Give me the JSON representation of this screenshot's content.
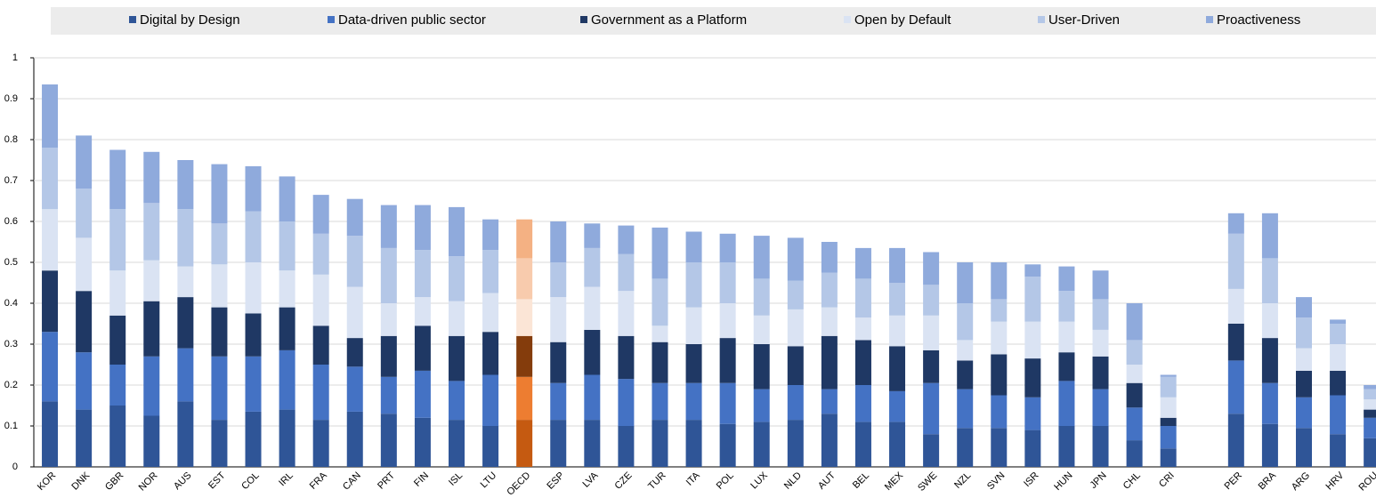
{
  "chart_data": {
    "type": "stacked_bar",
    "categories": [
      "KOR",
      "DNK",
      "GBR",
      "NOR",
      "AUS",
      "EST",
      "COL",
      "IRL",
      "FRA",
      "CAN",
      "PRT",
      "FIN",
      "ISL",
      "LTU",
      "OECD",
      "ESP",
      "LVA",
      "CZE",
      "TUR",
      "ITA",
      "POL",
      "LUX",
      "NLD",
      "AUT",
      "BEL",
      "MEX",
      "SWE",
      "NZL",
      "SVN",
      "ISR",
      "HUN",
      "JPN",
      "CHL",
      "CRI",
      null,
      "PER",
      "BRA",
      "ARG",
      "HRV",
      "ROU"
    ],
    "highlight": "OECD",
    "series": [
      {
        "name": "Digital by Design",
        "color": "#2f5597",
        "highlight_color": "#c55a11",
        "values": [
          0.16,
          0.14,
          0.15,
          0.125,
          0.16,
          0.115,
          0.135,
          0.14,
          0.115,
          0.135,
          0.13,
          0.12,
          0.115,
          0.1,
          0.115,
          0.115,
          0.115,
          0.1,
          0.115,
          0.115,
          0.105,
          0.11,
          0.115,
          0.13,
          0.11,
          0.11,
          0.08,
          0.095,
          0.095,
          0.09,
          0.1,
          0.1,
          0.065,
          0.045,
          null,
          0.13,
          0.105,
          0.095,
          0.08,
          0.07
        ]
      },
      {
        "name": "Data-driven public sector",
        "color": "#4472c4",
        "highlight_color": "#ed7d31",
        "values": [
          0.17,
          0.14,
          0.1,
          0.145,
          0.13,
          0.155,
          0.135,
          0.145,
          0.135,
          0.11,
          0.09,
          0.115,
          0.095,
          0.125,
          0.105,
          0.09,
          0.11,
          0.115,
          0.09,
          0.09,
          0.1,
          0.08,
          0.085,
          0.06,
          0.09,
          0.075,
          0.125,
          0.095,
          0.08,
          0.08,
          0.11,
          0.09,
          0.08,
          0.055,
          null,
          0.13,
          0.1,
          0.075,
          0.095,
          0.05
        ]
      },
      {
        "name": "Government as a Platform",
        "color": "#1f3864",
        "highlight_color": "#843c0c",
        "values": [
          0.15,
          0.15,
          0.12,
          0.135,
          0.125,
          0.12,
          0.105,
          0.105,
          0.095,
          0.07,
          0.1,
          0.11,
          0.11,
          0.105,
          0.1,
          0.1,
          0.11,
          0.105,
          0.1,
          0.095,
          0.11,
          0.11,
          0.095,
          0.13,
          0.11,
          0.11,
          0.08,
          0.07,
          0.1,
          0.095,
          0.07,
          0.08,
          0.06,
          0.02,
          null,
          0.09,
          0.11,
          0.065,
          0.06,
          0.02
        ]
      },
      {
        "name": "Open by Default",
        "color": "#dae3f3",
        "highlight_color": "#fbe5d6",
        "values": [
          0.15,
          0.13,
          0.11,
          0.1,
          0.075,
          0.105,
          0.125,
          0.09,
          0.125,
          0.125,
          0.08,
          0.07,
          0.085,
          0.095,
          0.09,
          0.11,
          0.105,
          0.11,
          0.04,
          0.09,
          0.085,
          0.07,
          0.09,
          0.07,
          0.055,
          0.075,
          0.085,
          0.05,
          0.08,
          0.09,
          0.075,
          0.065,
          0.045,
          0.05,
          null,
          0.085,
          0.085,
          0.055,
          0.065,
          0.025
        ]
      },
      {
        "name": "User-Driven",
        "color": "#b4c7e7",
        "highlight_color": "#f8cbad",
        "values": [
          0.15,
          0.12,
          0.15,
          0.14,
          0.14,
          0.1,
          0.125,
          0.12,
          0.1,
          0.125,
          0.135,
          0.115,
          0.11,
          0.105,
          0.1,
          0.085,
          0.095,
          0.09,
          0.115,
          0.11,
          0.1,
          0.09,
          0.07,
          0.085,
          0.095,
          0.08,
          0.075,
          0.09,
          0.055,
          0.11,
          0.075,
          0.075,
          0.06,
          0.05,
          null,
          0.135,
          0.11,
          0.075,
          0.05,
          0.025
        ]
      },
      {
        "name": "Proactiveness",
        "color": "#8faadc",
        "highlight_color": "#f4b183",
        "values": [
          0.155,
          0.13,
          0.145,
          0.125,
          0.12,
          0.145,
          0.11,
          0.11,
          0.095,
          0.09,
          0.105,
          0.11,
          0.12,
          0.075,
          0.095,
          0.1,
          0.06,
          0.07,
          0.125,
          0.075,
          0.07,
          0.105,
          0.105,
          0.075,
          0.075,
          0.085,
          0.08,
          0.1,
          0.09,
          0.03,
          0.06,
          0.07,
          0.09,
          0.005,
          null,
          0.05,
          0.11,
          0.05,
          0.01,
          0.01
        ]
      }
    ],
    "ylim": [
      0,
      1
    ],
    "yticks": [
      0,
      0.1,
      0.2,
      0.3,
      0.4,
      0.5,
      0.6,
      0.7,
      0.8,
      0.9,
      1
    ],
    "grid": true,
    "legend": "top"
  }
}
